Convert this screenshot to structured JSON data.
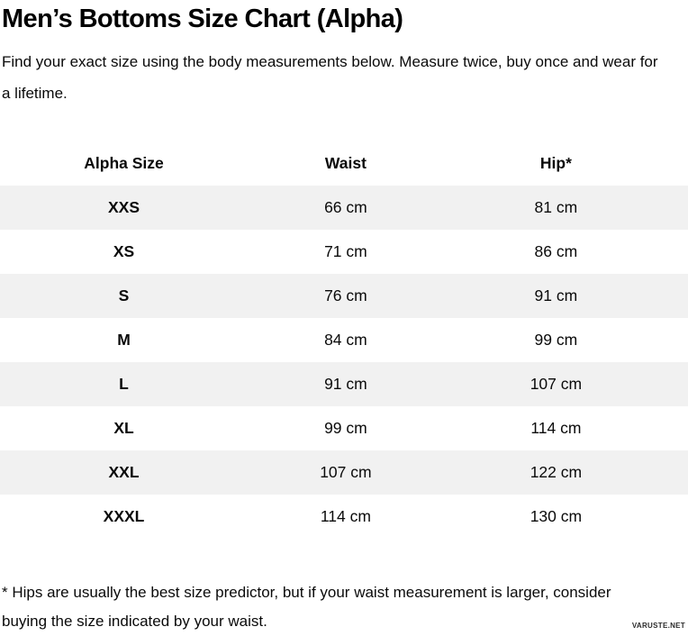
{
  "page": {
    "title": "Men’s Bottoms Size Chart (Alpha)",
    "subtitle": "Find your exact size using the body measurements below. Measure twice, buy once and wear for a lifetime.",
    "footnote": "* Hips are usually the best size predictor, but if your waist measurement is larger, consider buying the size indicated by your waist.",
    "watermark": "VARUSTE.NET"
  },
  "table": {
    "type": "table",
    "columns": [
      "Alpha Size",
      "Waist",
      "Hip*"
    ],
    "rows": [
      {
        "alpha_size": "XXS",
        "waist": "66 cm",
        "hip": "81 cm"
      },
      {
        "alpha_size": "XS",
        "waist": "71 cm",
        "hip": "86 cm"
      },
      {
        "alpha_size": "S",
        "waist": "76 cm",
        "hip": "91 cm"
      },
      {
        "alpha_size": "M",
        "waist": "84 cm",
        "hip": "99 cm"
      },
      {
        "alpha_size": "L",
        "waist": "91 cm",
        "hip": "107 cm"
      },
      {
        "alpha_size": "XL",
        "waist": "99 cm",
        "hip": "114 cm"
      },
      {
        "alpha_size": "XXL",
        "waist": "107 cm",
        "hip": "122 cm"
      },
      {
        "alpha_size": "XXXL",
        "waist": "114 cm",
        "hip": "130 cm"
      }
    ]
  },
  "colors": {
    "row_alt_bg": "#f1f1f1",
    "text": "#0a0a0a",
    "background": "#ffffff"
  }
}
